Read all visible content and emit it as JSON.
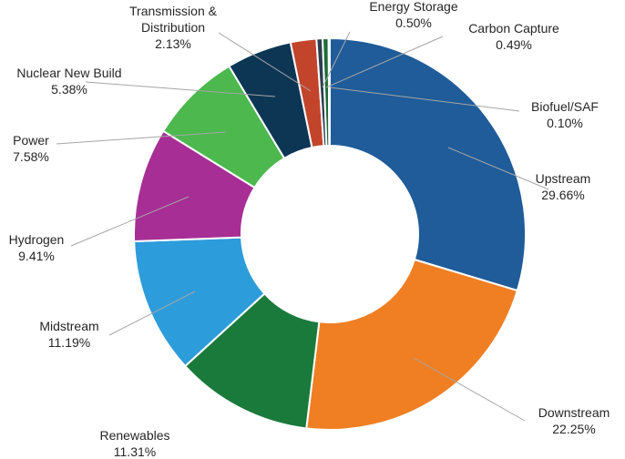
{
  "chart_data": {
    "type": "pie",
    "donut": true,
    "legend": "none",
    "slices": [
      {
        "label": "Upstream",
        "value": 29.66,
        "display": "29.66%",
        "color": "#1F5C99"
      },
      {
        "label": "Downstream",
        "value": 22.25,
        "display": "22.25%",
        "color": "#F07F23"
      },
      {
        "label": "Renewables",
        "value": 11.31,
        "display": "11.31%",
        "color": "#1A7A3C"
      },
      {
        "label": "Midstream",
        "value": 11.19,
        "display": "11.19%",
        "color": "#2D9CDB"
      },
      {
        "label": "Hydrogen",
        "value": 9.41,
        "display": "9.41%",
        "color": "#A62E95"
      },
      {
        "label": "Power",
        "value": 7.58,
        "display": "7.58%",
        "color": "#4CB84E"
      },
      {
        "label": "Nuclear New Build",
        "value": 5.38,
        "display": "5.38%",
        "color": "#0D3655"
      },
      {
        "label": "Transmission & Distribution",
        "label_lines": [
          "Transmission &",
          "Distribution"
        ],
        "value": 2.13,
        "display": "2.13%",
        "color": "#C2452B"
      },
      {
        "label": "Energy Storage",
        "value": 0.5,
        "display": "0.50%",
        "color": "#2C3E50"
      },
      {
        "label": "Carbon Capture",
        "value": 0.49,
        "display": "0.49%",
        "color": "#1B6B35"
      },
      {
        "label": "Biofuel/SAF",
        "value": 0.1,
        "display": "0.10%",
        "color": "#5BA3D6"
      }
    ]
  }
}
